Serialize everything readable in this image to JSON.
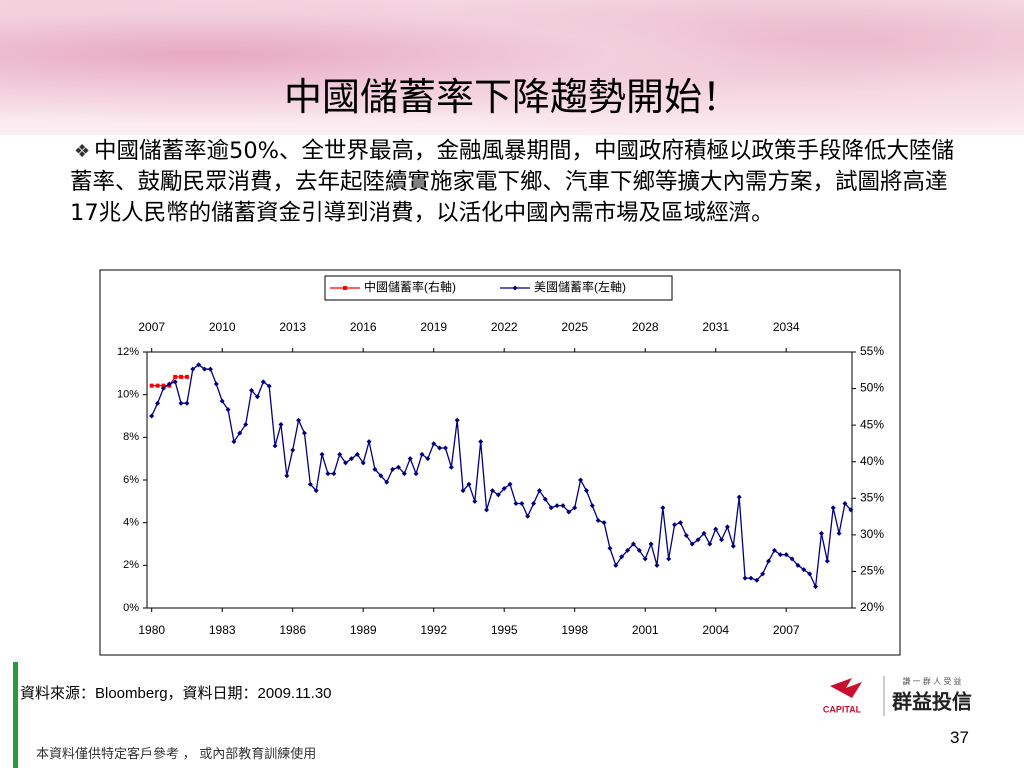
{
  "title": "中國儲蓄率下降趨勢開始！",
  "body": "中國儲蓄率逾50%、全世界最高，金融風暴期間，中國政府積極以政策手段降低大陸儲蓄率、鼓勵民眾消費，去年起陸續實施家電下鄉、汽車下鄉等擴大內需方案，試圖將高達17兆人民幣的儲蓄資金引導到消費，以活化中國內需市場及區域經濟。",
  "source": "資料來源：Bloomberg，資料日期：2009.11.30",
  "disclaimer": "本資料僅供特定客戶參考 ， 或內部教育訓練使用",
  "page_number": "37",
  "logo": {
    "brand": "CAPITAL",
    "name": "群益投信",
    "slogan": "謙 一 群 人 受 益"
  },
  "chart_data": {
    "type": "line",
    "legend": "top",
    "xlim": [
      1979.8,
      2009.8
    ],
    "xticks": [
      1980,
      1983,
      1986,
      1989,
      1992,
      1995,
      1998,
      2001,
      2004,
      2007
    ],
    "x2lim": [
      2006.8,
      2036.8
    ],
    "x2ticks": [
      2007,
      2010,
      2013,
      2016,
      2019,
      2022,
      2025,
      2028,
      2031,
      2034
    ],
    "ylim": [
      0,
      12
    ],
    "yticks": [
      {
        "value": 0,
        "label": "0%"
      },
      {
        "value": 2,
        "label": "2%"
      },
      {
        "value": 4,
        "label": "4%"
      },
      {
        "value": 6,
        "label": "6%"
      },
      {
        "value": 8,
        "label": "8%"
      },
      {
        "value": 10,
        "label": "10%"
      },
      {
        "value": 12,
        "label": "12%"
      }
    ],
    "y2lim": [
      20,
      55
    ],
    "y2ticks": [
      {
        "value": 20,
        "label": "20%"
      },
      {
        "value": 25,
        "label": "25%"
      },
      {
        "value": 30,
        "label": "30%"
      },
      {
        "value": 35,
        "label": "35%"
      },
      {
        "value": 40,
        "label": "40%"
      },
      {
        "value": 45,
        "label": "45%"
      },
      {
        "value": 50,
        "label": "50%"
      },
      {
        "value": 55,
        "label": "55%"
      }
    ],
    "series": [
      {
        "name": "中國儲蓄率(右軸)",
        "color": "#ff0000",
        "axis": "y2",
        "xaxis": "x2",
        "marker": "square",
        "x": [
          2007,
          2007.25,
          2007.5,
          2007.75,
          2008,
          2008.25,
          2008.5
        ],
        "values": [
          50.4,
          50.4,
          50.4,
          50.4,
          51.6,
          51.6,
          51.6
        ]
      },
      {
        "name": "美國儲蓄率(左軸)",
        "color": "#000080",
        "axis": "y",
        "xaxis": "x",
        "marker": "diamond",
        "x": [
          1980,
          1980.25,
          1980.5,
          1980.75,
          1981,
          1981.25,
          1981.5,
          1981.75,
          1982,
          1982.25,
          1982.5,
          1982.75,
          1983,
          1983.25,
          1983.5,
          1983.75,
          1984,
          1984.25,
          1984.5,
          1984.75,
          1985,
          1985.25,
          1985.5,
          1985.75,
          1986,
          1986.25,
          1986.5,
          1986.75,
          1987,
          1987.25,
          1987.5,
          1987.75,
          1988,
          1988.25,
          1988.5,
          1988.75,
          1989,
          1989.25,
          1989.5,
          1989.75,
          1990,
          1990.25,
          1990.5,
          1990.75,
          1991,
          1991.25,
          1991.5,
          1991.75,
          1992,
          1992.25,
          1992.5,
          1992.75,
          1993,
          1993.25,
          1993.5,
          1993.75,
          1994,
          1994.25,
          1994.5,
          1994.75,
          1995,
          1995.25,
          1995.5,
          1995.75,
          1996,
          1996.25,
          1996.5,
          1996.75,
          1997,
          1997.25,
          1997.5,
          1997.75,
          1998,
          1998.25,
          1998.5,
          1998.75,
          1999,
          1999.25,
          1999.5,
          1999.75,
          2000,
          2000.25,
          2000.5,
          2000.75,
          2001,
          2001.25,
          2001.5,
          2001.75,
          2002,
          2002.25,
          2002.5,
          2002.75,
          2003,
          2003.25,
          2003.5,
          2003.75,
          2004,
          2004.25,
          2004.5,
          2004.75,
          2005,
          2005.25,
          2005.5,
          2005.75,
          2006,
          2006.25,
          2006.5,
          2006.75,
          2007,
          2007.25,
          2007.5,
          2007.75,
          2008,
          2008.25,
          2008.5,
          2008.75,
          2009,
          2009.25,
          2009.5,
          2009.75
        ],
        "values": [
          9.0,
          9.6,
          10.3,
          10.5,
          10.6,
          9.6,
          9.6,
          11.2,
          11.4,
          11.2,
          11.2,
          10.5,
          9.7,
          9.3,
          7.8,
          8.2,
          8.6,
          10.2,
          9.9,
          10.6,
          10.4,
          7.6,
          8.6,
          6.2,
          7.4,
          8.8,
          8.2,
          5.8,
          5.5,
          7.2,
          6.3,
          6.3,
          7.2,
          6.8,
          7.0,
          7.2,
          6.8,
          7.8,
          6.5,
          6.2,
          5.9,
          6.5,
          6.6,
          6.3,
          7.0,
          6.3,
          7.2,
          7.0,
          7.7,
          7.5,
          7.5,
          6.6,
          8.8,
          5.5,
          5.8,
          5.0,
          7.8,
          4.6,
          5.5,
          5.3,
          5.6,
          5.8,
          4.9,
          4.9,
          4.3,
          4.9,
          5.5,
          5.1,
          4.7,
          4.8,
          4.8,
          4.5,
          4.7,
          6.0,
          5.5,
          4.8,
          4.1,
          4.0,
          2.8,
          2.0,
          2.4,
          2.7,
          3.0,
          2.7,
          2.3,
          3.0,
          2.0,
          4.7,
          2.3,
          3.9,
          4.0,
          3.4,
          3.0,
          3.2,
          3.5,
          3.0,
          3.7,
          3.2,
          3.8,
          2.9,
          5.2,
          1.4,
          1.4,
          1.3,
          1.6,
          2.2,
          2.7,
          2.5,
          2.5,
          2.3,
          2.0,
          1.8,
          1.6,
          1.0,
          3.5,
          2.2,
          4.7,
          3.5,
          4.9,
          4.6
        ]
      }
    ]
  }
}
